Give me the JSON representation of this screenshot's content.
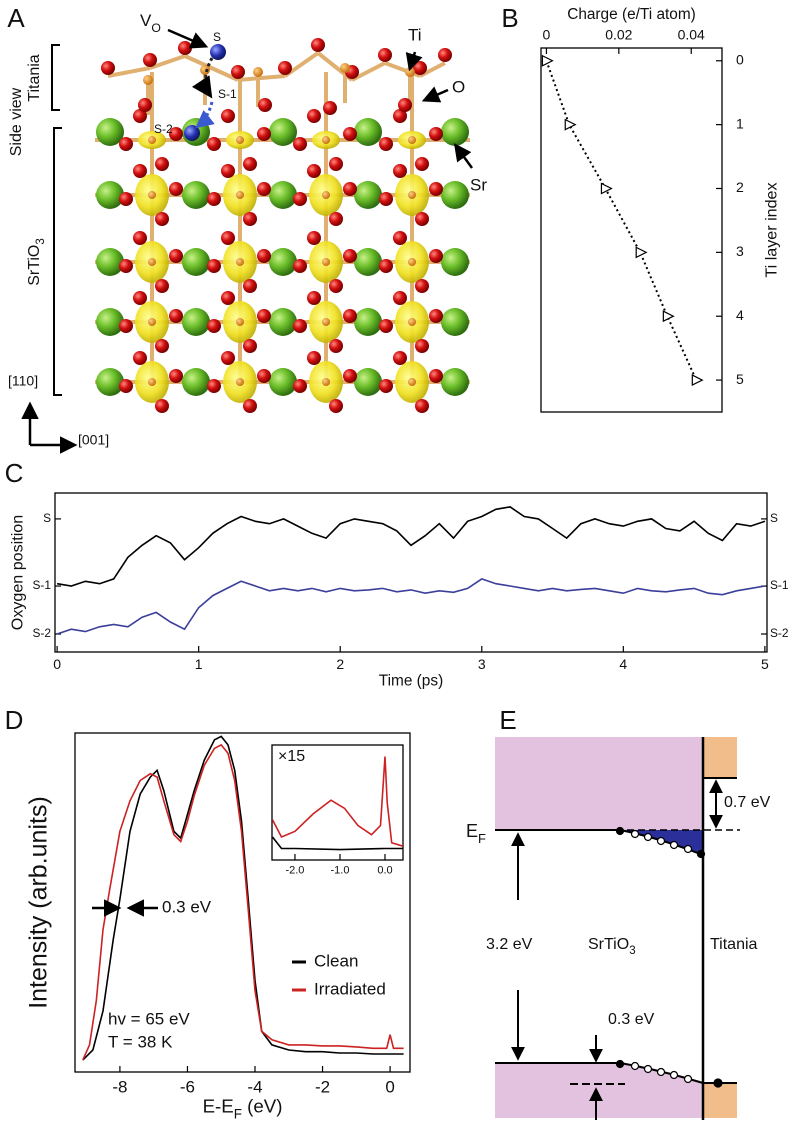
{
  "panel_labels": [
    "A",
    "B",
    "C",
    "D",
    "E"
  ],
  "structure": {
    "titania": "Titania",
    "side_view": "Side view",
    "srtio3": [
      "SrTiO",
      "3"
    ],
    "vo": [
      "V",
      "O"
    ],
    "s": "S",
    "s1": "S-1",
    "s2": "S-2",
    "ti": "Ti",
    "o": "O",
    "sr": "Sr",
    "dir_110": "[110]",
    "dir_001": "[001]"
  },
  "band_diagram": {
    "ef": [
      "E",
      "F"
    ],
    "offset": "0.7 eV",
    "gap": "3.2 eV",
    "srtio3": [
      "SrTiO",
      "3"
    ],
    "titania": "Titania",
    "bending": "0.3 eV"
  },
  "chart_data": [
    {
      "type": "line",
      "xlabel": "Charge (e/Ti atom)",
      "ylabel": "Ti layer index",
      "xaxis_position": "top",
      "yaxis_position": "right",
      "x": [
        0,
        0.0063,
        0.0163,
        0.0259,
        0.0334,
        0.0414
      ],
      "series": [
        {
          "color": "#000000",
          "marker": "triangle",
          "linestyle": "dotted",
          "values": [
            0,
            1,
            2,
            3,
            4,
            5
          ]
        }
      ],
      "xlim": [
        -0.0015,
        0.0485
      ],
      "ylim": [
        5.5,
        -0.2
      ],
      "xticks": [
        0,
        0.02,
        0.04
      ],
      "yticks": [
        0,
        1,
        2,
        3,
        4,
        5
      ]
    },
    {
      "type": "line",
      "xlabel": "Time (ps)",
      "ylabel": "Oxygen position",
      "yaxis_position": "both",
      "x": [
        0,
        0.1,
        0.2,
        0.3,
        0.4,
        0.5,
        0.6,
        0.7,
        0.8,
        0.9,
        1.0,
        1.1,
        1.2,
        1.3,
        1.4,
        1.5,
        1.6,
        1.7,
        1.8,
        1.9,
        2.0,
        2.1,
        2.2,
        2.3,
        2.4,
        2.5,
        2.6,
        2.7,
        2.8,
        2.9,
        3.0,
        3.1,
        3.2,
        3.3,
        3.4,
        3.5,
        3.6,
        3.7,
        3.8,
        3.9,
        4.0,
        4.1,
        4.2,
        4.3,
        4.4,
        4.5,
        4.6,
        4.7,
        4.8,
        4.9,
        5.0
      ],
      "series": [
        {
          "color": "#000000",
          "values": [
            1.05,
            1.0,
            1.1,
            1.05,
            1.15,
            1.6,
            1.85,
            2.05,
            1.9,
            1.55,
            1.8,
            2.1,
            2.3,
            2.45,
            2.35,
            2.3,
            2.4,
            2.25,
            2.1,
            2.0,
            2.3,
            2.4,
            2.35,
            2.3,
            2.15,
            1.85,
            2.05,
            2.3,
            2.0,
            2.35,
            2.45,
            2.6,
            2.65,
            2.45,
            2.4,
            2.2,
            2.0,
            2.3,
            2.4,
            2.3,
            2.25,
            2.35,
            2.4,
            2.2,
            2.15,
            2.35,
            2.1,
            1.95,
            2.3,
            2.25,
            2.35
          ]
        },
        {
          "color": "#3a3f9a",
          "values": [
            0.0,
            0.1,
            0.05,
            0.15,
            0.2,
            0.15,
            0.35,
            0.45,
            0.25,
            0.1,
            0.55,
            0.8,
            0.95,
            1.1,
            1.0,
            0.9,
            0.95,
            0.9,
            0.95,
            0.88,
            0.95,
            0.9,
            0.92,
            0.95,
            0.88,
            0.92,
            0.85,
            0.9,
            0.87,
            0.95,
            1.15,
            1.05,
            1.0,
            0.95,
            0.9,
            0.95,
            0.9,
            0.93,
            0.95,
            0.9,
            0.85,
            0.95,
            0.9,
            0.88,
            0.92,
            0.95,
            0.85,
            0.82,
            0.9,
            0.95,
            1.0
          ]
        }
      ],
      "xlim": [
        -0.015,
        5.015
      ],
      "ylim": [
        -0.375,
        2.94
      ],
      "xticks": [
        0,
        1,
        2,
        3,
        4,
        5
      ],
      "yticks": [
        {
          "value": 2.4,
          "label": "S"
        },
        {
          "value": 1,
          "label": "S-1"
        },
        {
          "value": 0,
          "label": "S-2"
        }
      ]
    },
    {
      "type": "line",
      "xlabel": [
        "E-E",
        "F",
        " (eV)"
      ],
      "ylabel": "Intensity (arb.units)",
      "legend": "lower right",
      "annotations": [
        "0.3 eV",
        "hv = 65 eV",
        "T = 38 K"
      ],
      "series": [
        {
          "name": "Clean",
          "color": "#000000",
          "x": [
            -9.1,
            -8.8,
            -8.5,
            -8.2,
            -8.0,
            -7.7,
            -7.4,
            -7.1,
            -6.9,
            -6.7,
            -6.4,
            -6.2,
            -6.0,
            -5.8,
            -5.5,
            -5.2,
            -5.0,
            -4.8,
            -4.6,
            -4.4,
            -4.2,
            -4.0,
            -3.8,
            -3.5,
            -3.0,
            -2.5,
            -2.0,
            -1.5,
            -1.0,
            -0.5,
            0,
            0.4
          ],
          "values": [
            0.035,
            0.065,
            0.18,
            0.39,
            0.51,
            0.71,
            0.82,
            0.87,
            0.89,
            0.83,
            0.71,
            0.69,
            0.76,
            0.83,
            0.92,
            0.98,
            0.99,
            0.965,
            0.89,
            0.74,
            0.51,
            0.27,
            0.12,
            0.08,
            0.065,
            0.06,
            0.06,
            0.056,
            0.056,
            0.053,
            0.053,
            0.053
          ]
        },
        {
          "name": "Irradiated",
          "color": "#cc2222",
          "x": [
            -9.1,
            -8.9,
            -8.7,
            -8.5,
            -8.3,
            -8.0,
            -7.7,
            -7.4,
            -7.1,
            -6.9,
            -6.7,
            -6.4,
            -6.2,
            -6.0,
            -5.8,
            -5.5,
            -5.2,
            -5.0,
            -4.8,
            -4.6,
            -4.4,
            -4.2,
            -4.0,
            -3.8,
            -3.5,
            -3.0,
            -2.5,
            -2.0,
            -1.5,
            -1.0,
            -0.5,
            -0.1,
            0,
            0.1,
            0.4
          ],
          "values": [
            0.035,
            0.08,
            0.21,
            0.42,
            0.54,
            0.71,
            0.8,
            0.86,
            0.88,
            0.87,
            0.8,
            0.7,
            0.68,
            0.74,
            0.815,
            0.905,
            0.955,
            0.965,
            0.94,
            0.86,
            0.71,
            0.48,
            0.24,
            0.12,
            0.095,
            0.08,
            0.08,
            0.077,
            0.077,
            0.074,
            0.07,
            0.07,
            0.11,
            0.07,
            0.07
          ]
        }
      ],
      "xlim": [
        -9.33,
        0.59
      ],
      "ylim": [
        0,
        1
      ],
      "xticks": [
        -8,
        -6,
        -4,
        -2,
        0
      ]
    },
    {
      "type": "line",
      "title": "×15",
      "series": [
        {
          "color": "#000000",
          "x": [
            -2.5,
            -2.3,
            -2.0,
            -1.0,
            0,
            0.4
          ],
          "values": [
            0.2,
            0.1,
            0.1,
            0.09,
            0.1,
            0.1
          ]
        },
        {
          "color": "#cc2222",
          "x": [
            -2.5,
            -2.3,
            -2.0,
            -1.6,
            -1.2,
            -0.9,
            -0.6,
            -0.3,
            -0.1,
            0.0,
            0.05,
            0.15,
            0.4
          ],
          "values": [
            0.35,
            0.2,
            0.25,
            0.4,
            0.52,
            0.45,
            0.3,
            0.22,
            0.3,
            0.9,
            0.5,
            0.15,
            0.12
          ]
        }
      ],
      "xlim": [
        -2.51,
        0.4
      ],
      "ylim": [
        0,
        1
      ],
      "xticks": [
        {
          "value": -2,
          "label": "-2.0"
        },
        {
          "value": -1,
          "label": "-1.0"
        },
        {
          "value": 0,
          "label": "0.0"
        }
      ]
    }
  ]
}
